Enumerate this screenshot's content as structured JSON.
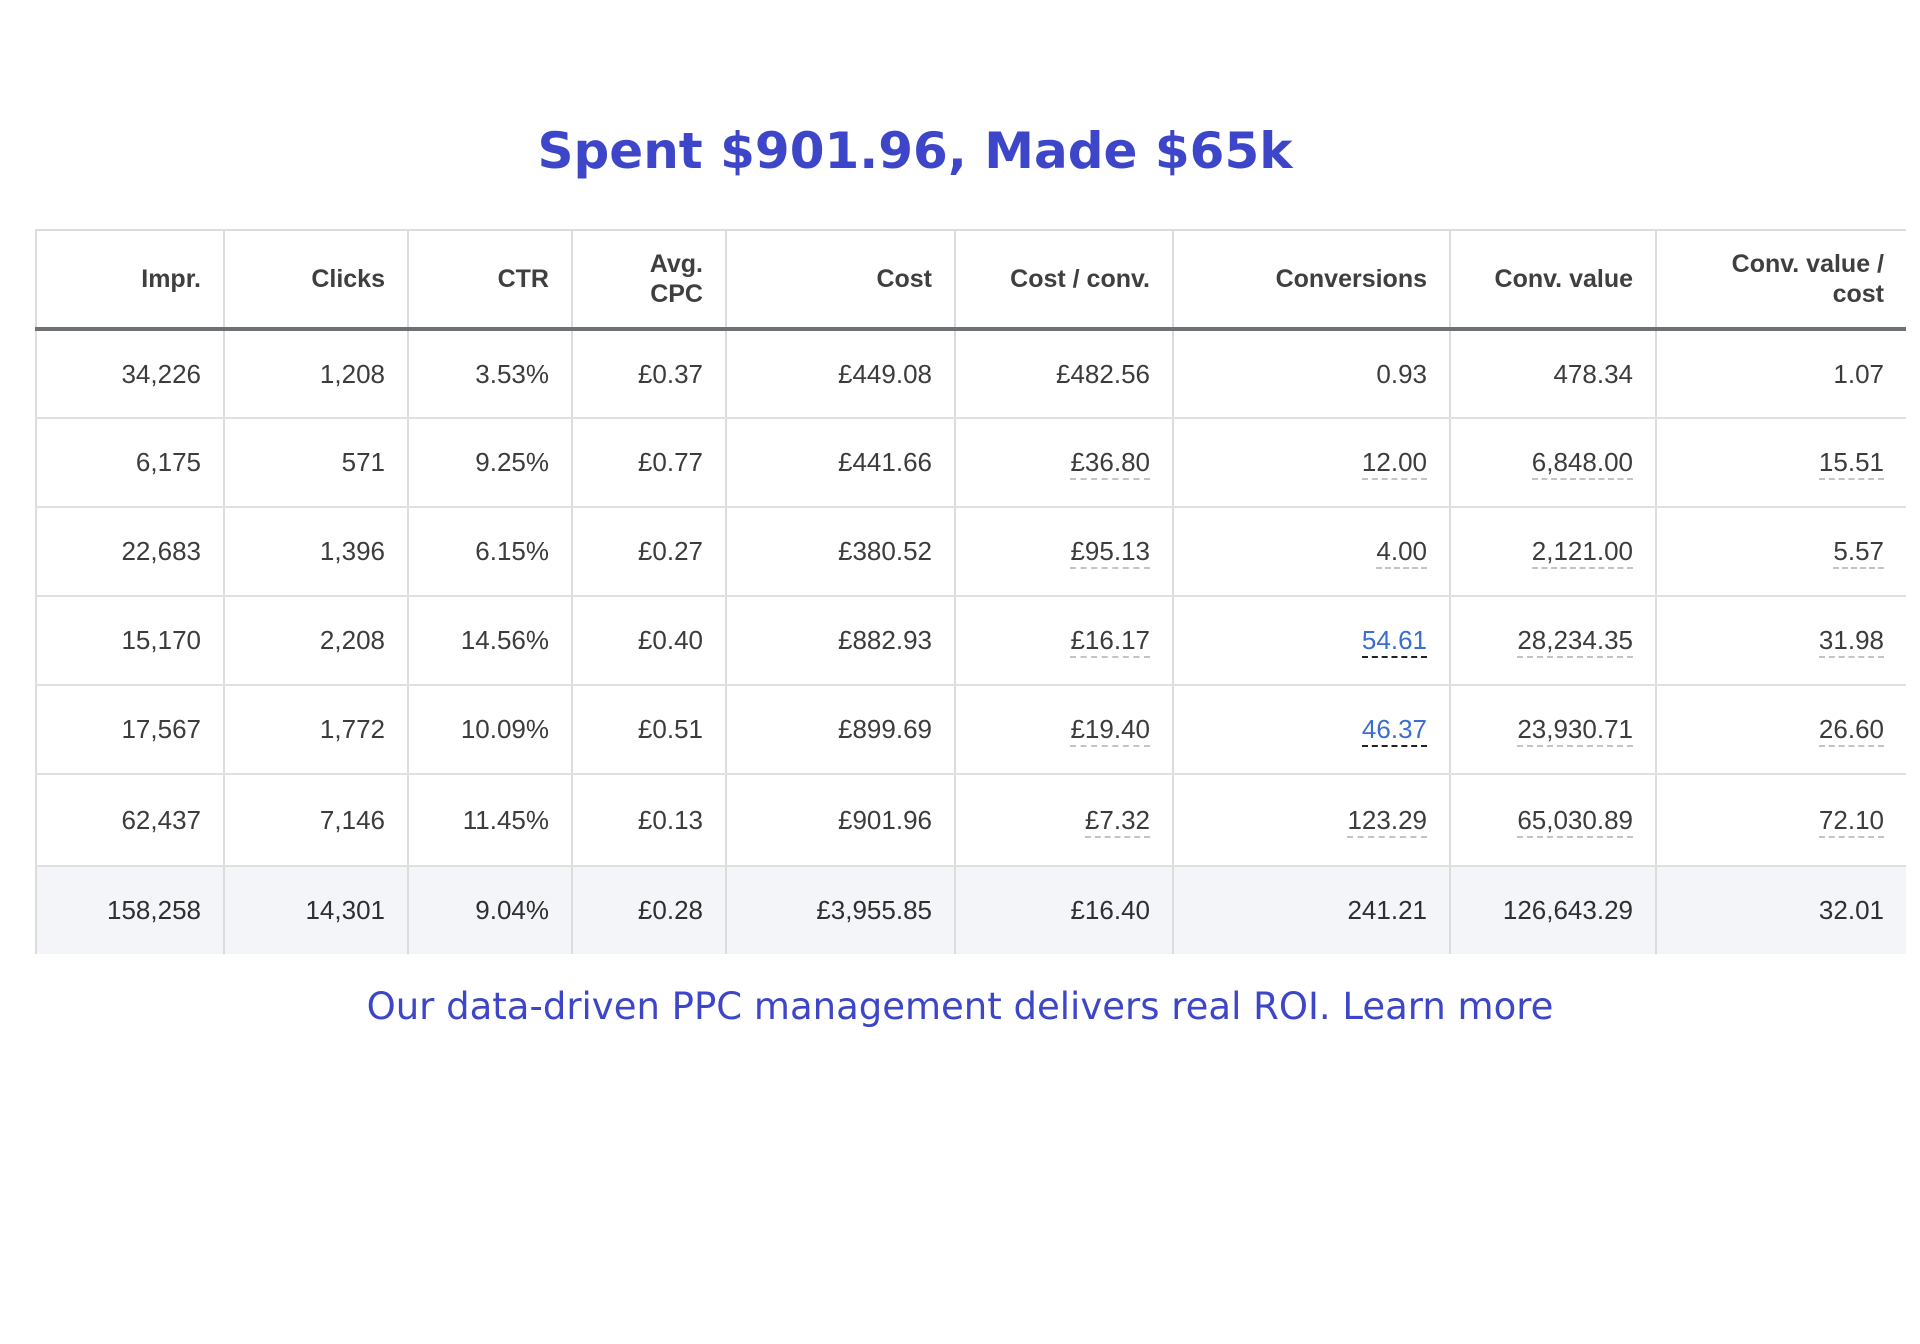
{
  "headline": "Spent $901.96, Made $65k",
  "table": {
    "headers": [
      "Impr.",
      "Clicks",
      "CTR",
      "Avg.\nCPC",
      "Cost",
      "Cost / conv.",
      "Conversions",
      "Conv. value",
      "Conv. value /\ncost"
    ],
    "rows": [
      [
        "34,226",
        "1,208",
        "3.53%",
        "£0.37",
        "£449.08",
        "£482.56",
        "0.93",
        "478.34",
        "1.07"
      ],
      [
        "6,175",
        "571",
        "9.25%",
        "£0.77",
        "£441.66",
        "£36.80",
        "12.00",
        "6,848.00",
        "15.51"
      ],
      [
        "22,683",
        "1,396",
        "6.15%",
        "£0.27",
        "£380.52",
        "£95.13",
        "4.00",
        "2,121.00",
        "5.57"
      ],
      [
        "15,170",
        "2,208",
        "14.56%",
        "£0.40",
        "£882.93",
        "£16.17",
        "54.61",
        "28,234.35",
        "31.98"
      ],
      [
        "17,567",
        "1,772",
        "10.09%",
        "£0.51",
        "£899.69",
        "£19.40",
        "46.37",
        "23,930.71",
        "26.60"
      ],
      [
        "62,437",
        "7,146",
        "11.45%",
        "£0.13",
        "£901.96",
        "£7.32",
        "123.29",
        "65,030.89",
        "72.10"
      ]
    ],
    "totals": [
      "158,258",
      "14,301",
      "9.04%",
      "£0.28",
      "£3,955.85",
      "£16.40",
      "241.21",
      "126,643.29",
      "32.01"
    ]
  },
  "footer": "Our data-driven PPC management delivers real ROI. Learn more"
}
